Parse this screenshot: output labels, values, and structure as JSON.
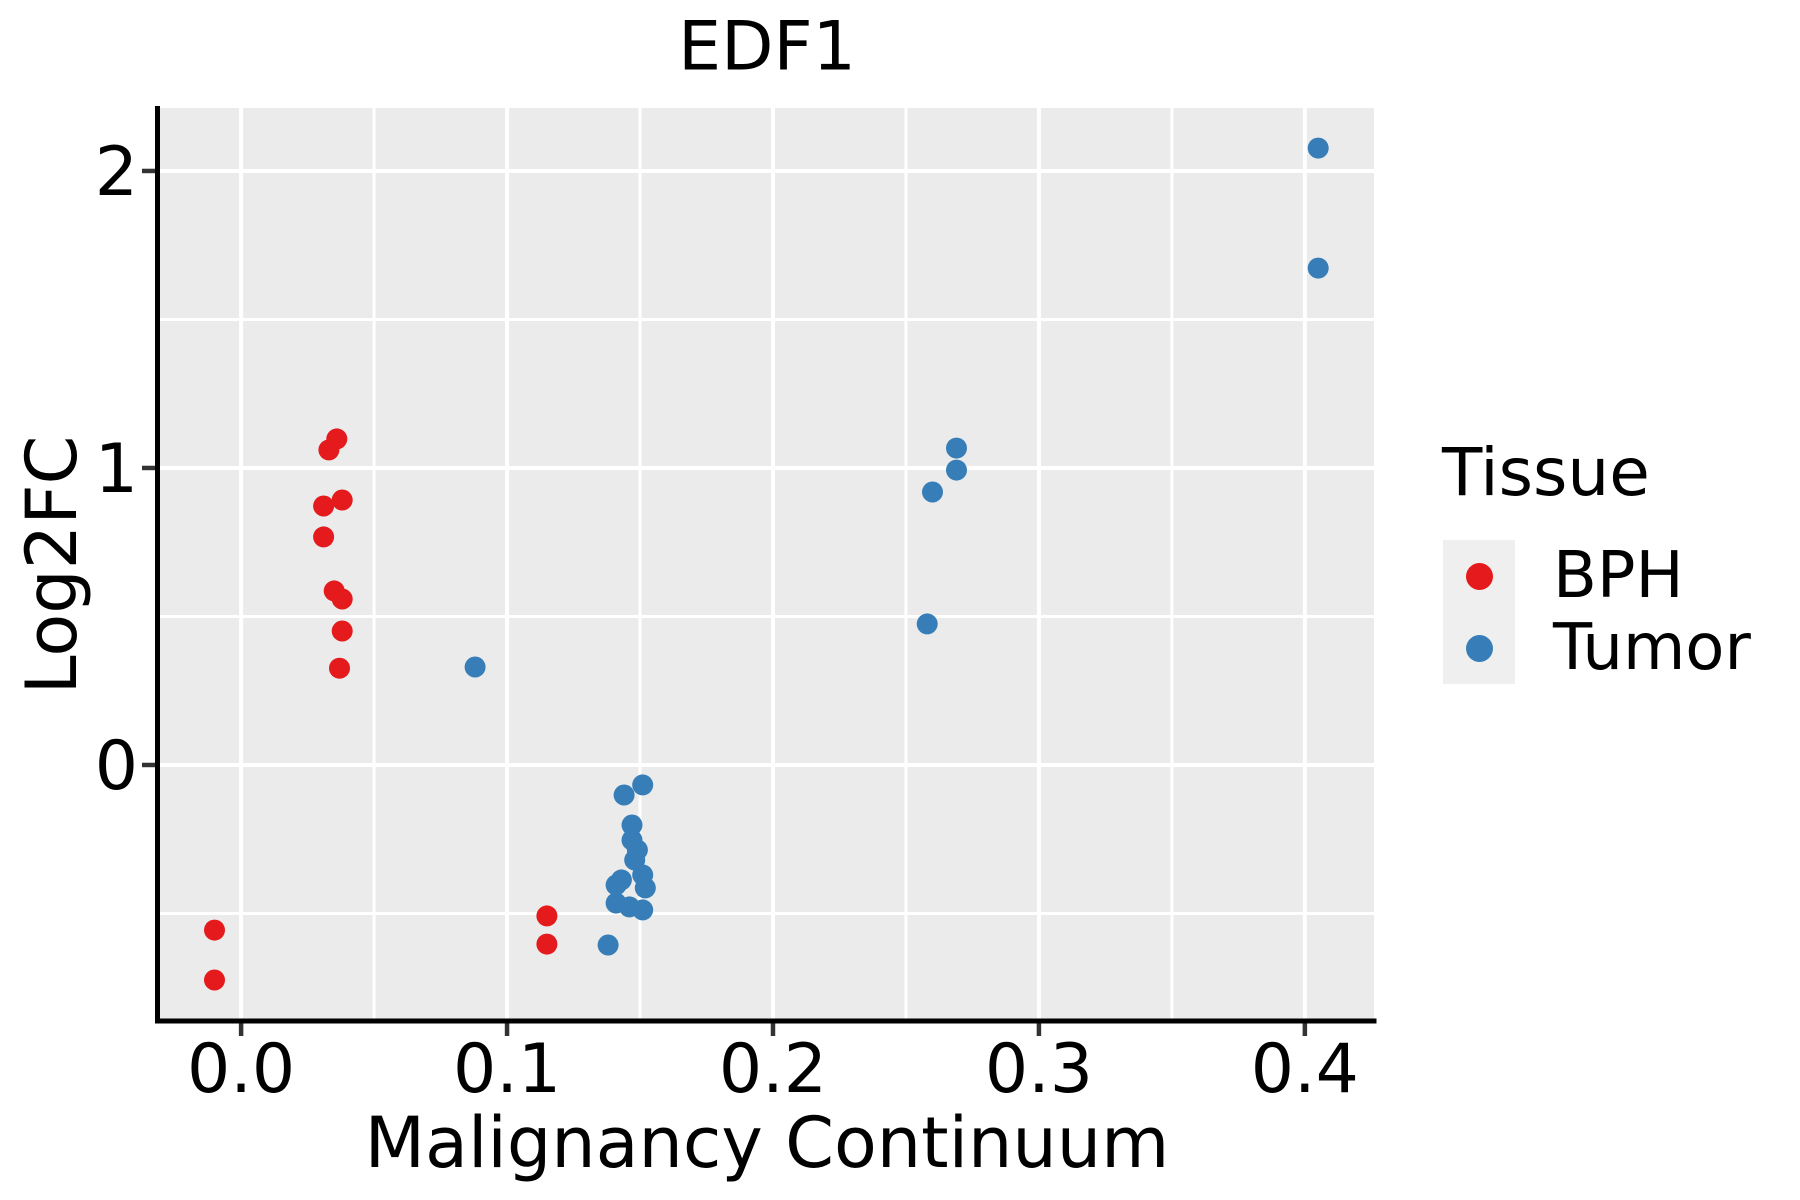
{
  "chart_data": {
    "type": "scatter",
    "title": "EDF1",
    "xlabel": "Malignancy Continuum",
    "ylabel": "Log2FC",
    "xlim": [
      -0.0305,
      0.426
    ],
    "ylim": [
      -0.862,
      2.212
    ],
    "x_ticks": [
      0.0,
      0.1,
      0.2,
      0.3,
      0.4
    ],
    "x_tick_labels": [
      "0.0",
      "0.1",
      "0.2",
      "0.3",
      "0.4"
    ],
    "y_ticks": [
      0,
      1,
      2
    ],
    "y_tick_labels": [
      "0",
      "1",
      "2"
    ],
    "x_grid_minor": [
      0.05,
      0.15,
      0.25,
      0.35
    ],
    "y_grid_minor": [
      -0.5,
      0.5,
      1.5
    ],
    "grid": true,
    "panel_bg": "#EBEBEB",
    "grid_color": "#FFFFFF",
    "axis_color": "#000000",
    "tick_color": "#333333",
    "legend": {
      "title": "Tissue",
      "position": "right"
    },
    "series": [
      {
        "name": "BPH",
        "color": "#E41A1C",
        "points": [
          [
            -0.01,
            -0.556
          ],
          [
            -0.01,
            -0.724
          ],
          [
            0.033,
            1.061
          ],
          [
            0.036,
            1.098
          ],
          [
            0.031,
            0.872
          ],
          [
            0.038,
            0.892
          ],
          [
            0.031,
            0.768
          ],
          [
            0.035,
            0.586
          ],
          [
            0.038,
            0.559
          ],
          [
            0.038,
            0.451
          ],
          [
            0.037,
            0.326
          ],
          [
            0.115,
            -0.508
          ],
          [
            0.115,
            -0.603
          ]
        ]
      },
      {
        "name": "Tumor",
        "color": "#377EB8",
        "points": [
          [
            0.088,
            0.33
          ],
          [
            0.151,
            -0.067
          ],
          [
            0.144,
            -0.101
          ],
          [
            0.147,
            -0.202
          ],
          [
            0.147,
            -0.253
          ],
          [
            0.149,
            -0.286
          ],
          [
            0.148,
            -0.32
          ],
          [
            0.151,
            -0.37
          ],
          [
            0.143,
            -0.387
          ],
          [
            0.141,
            -0.404
          ],
          [
            0.152,
            -0.414
          ],
          [
            0.141,
            -0.465
          ],
          [
            0.146,
            -0.478
          ],
          [
            0.151,
            -0.488
          ],
          [
            0.138,
            -0.606
          ],
          [
            0.269,
            1.067
          ],
          [
            0.269,
            0.993
          ],
          [
            0.26,
            0.919
          ],
          [
            0.258,
            0.475
          ],
          [
            0.405,
            2.077
          ],
          [
            0.405,
            1.673
          ]
        ]
      }
    ]
  }
}
